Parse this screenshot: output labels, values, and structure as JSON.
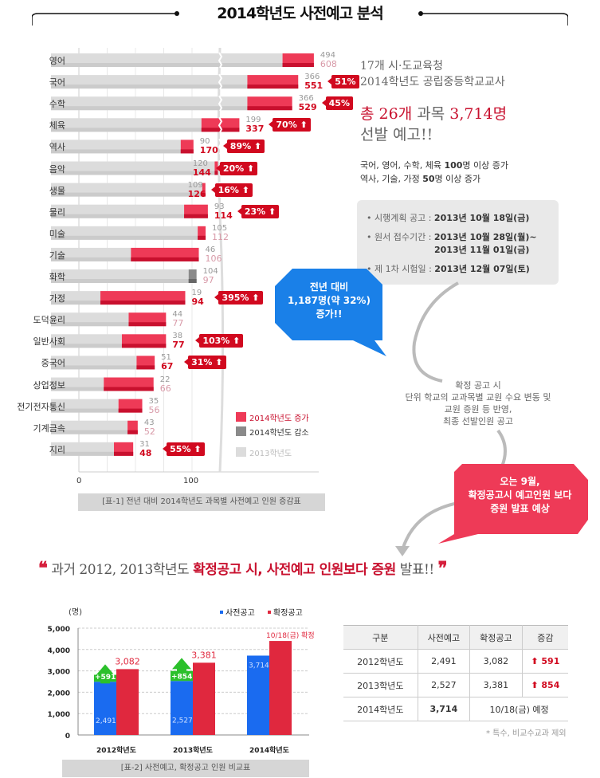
{
  "header": {
    "title": "2014학년도 사전예고 분석"
  },
  "chart_data": [
    {
      "type": "bar",
      "title": "[표-1] 전년 대비 2014학년도 과목별 사전예고 인원 증감표",
      "orientation": "horizontal",
      "categories": [
        "영어",
        "국어",
        "수학",
        "체육",
        "역사",
        "음악",
        "생물",
        "물리",
        "미술",
        "기술",
        "화학",
        "가정",
        "도덕윤리",
        "일반사회",
        "중국어",
        "상업정보",
        "전기전자통신",
        "기계금속",
        "지리"
      ],
      "series": [
        {
          "name": "2013학년도",
          "values": [
            494,
            366,
            366,
            199,
            90,
            120,
            109,
            93,
            105,
            46,
            104,
            19,
            44,
            38,
            51,
            22,
            35,
            43,
            31
          ]
        },
        {
          "name": "2014학년도",
          "values": [
            608,
            551,
            529,
            337,
            170,
            144,
            126,
            114,
            112,
            106,
            97,
            94,
            77,
            77,
            67,
            66,
            56,
            52,
            48
          ]
        }
      ],
      "increase_badges": {
        "국어": "51%",
        "수학": "45%",
        "체육": "70%",
        "역사": "89%",
        "음악": "20%",
        "생물": "16%",
        "물리": "23%",
        "가정": "395%",
        "일반사회": "103%",
        "중국어": "31%",
        "지리": "55%"
      },
      "x_ticks": [
        "0",
        "100"
      ],
      "axis_break": true,
      "legend": [
        {
          "label": "2014학년도 증가",
          "color": "#ee3a57"
        },
        {
          "label": "2014학년도 감소",
          "color": "#8a8a8a"
        },
        {
          "label": "2013학년도",
          "color": "#dcdcdc"
        }
      ],
      "legend_position": "bottom-right"
    },
    {
      "type": "bar",
      "title": "[표-2] 사전예고, 확정공고 인원 비교표",
      "ylabel": "(명)",
      "ylim": [
        0,
        5000
      ],
      "y_ticks": [
        "0",
        "1,000",
        "2,000",
        "3,000",
        "4,000",
        "5,000"
      ],
      "categories": [
        "2012학년도",
        "2013학년도",
        "2014학년도"
      ],
      "series": [
        {
          "name": "사전공고",
          "color": "#1a6bf0",
          "values": [
            2491,
            2527,
            3714
          ],
          "labels": [
            "2,491",
            "2,527",
            "3,714"
          ]
        },
        {
          "name": "확정공고",
          "color": "#e0283e",
          "values": [
            3082,
            3381,
            4400
          ],
          "labels": [
            "3,082",
            "3,381",
            "10/18(금) 확정"
          ]
        }
      ],
      "increments": [
        {
          "label": "+591",
          "value": 591
        },
        {
          "label": "+854",
          "value": 854
        }
      ],
      "legend_position": "top-right"
    }
  ],
  "summary": {
    "line1": "17개 시·도교육청",
    "line2": "2014학년도 공립중등학교교사",
    "total_red": "총 26개",
    "total_mid": " 과목 ",
    "total_red2": "3,714명",
    "total_line2": "선발 예고!!",
    "note1_pre": "국어, 영어, 수학, 체육 ",
    "note1_bold": "100",
    "note1_post": "명 이상 증가",
    "note2_pre": "역사, 기술, 가정 ",
    "note2_bold": "50",
    "note2_post": "명 이상 증가"
  },
  "schedule": [
    {
      "label": "시행계획 공고 :",
      "value": "2013년 10월 18일(금)"
    },
    {
      "label": "원서 접수기간 :",
      "value": "2013년 10월 28일(월)~",
      "value2": "2013년 11월 01일(금)"
    },
    {
      "label": "제 1차 시험일 :",
      "value": "2013년 12월 07일(토)"
    }
  ],
  "bubble_blue": {
    "l1": "전년 대비",
    "l2": "1,187명(약 32%)",
    "l3": "증가!!"
  },
  "mid_note": {
    "l1": "확정 공고 시",
    "l2": "단위 학교의 교과목별 교원 수요 변동 및",
    "l3": "교원 증원 등 반영,",
    "l4": "최종 선발인원 공고"
  },
  "bubble_red": {
    "l1": "오는 9월,",
    "l2": "확정공고시 예고인원 보다",
    "l3": "증원 발표 예상"
  },
  "quote": {
    "open": "❝",
    "pre": "과거 2012, 2013학년도 ",
    "hl": "확정공고 시, 사전예고 인원보다 증원",
    "post": " 발표!!",
    "close": "❞"
  },
  "table": {
    "headers": [
      "구분",
      "사전예고",
      "확정공고",
      "증감"
    ],
    "rows": [
      [
        "2012학년도",
        "2,491",
        "3,082",
        "591"
      ],
      [
        "2013학년도",
        "2,527",
        "3,381",
        "854"
      ],
      [
        "2014학년도",
        "3,714",
        "10/18(금) 예정"
      ]
    ],
    "footnote": "* 특수, 비교수교과 제외"
  }
}
